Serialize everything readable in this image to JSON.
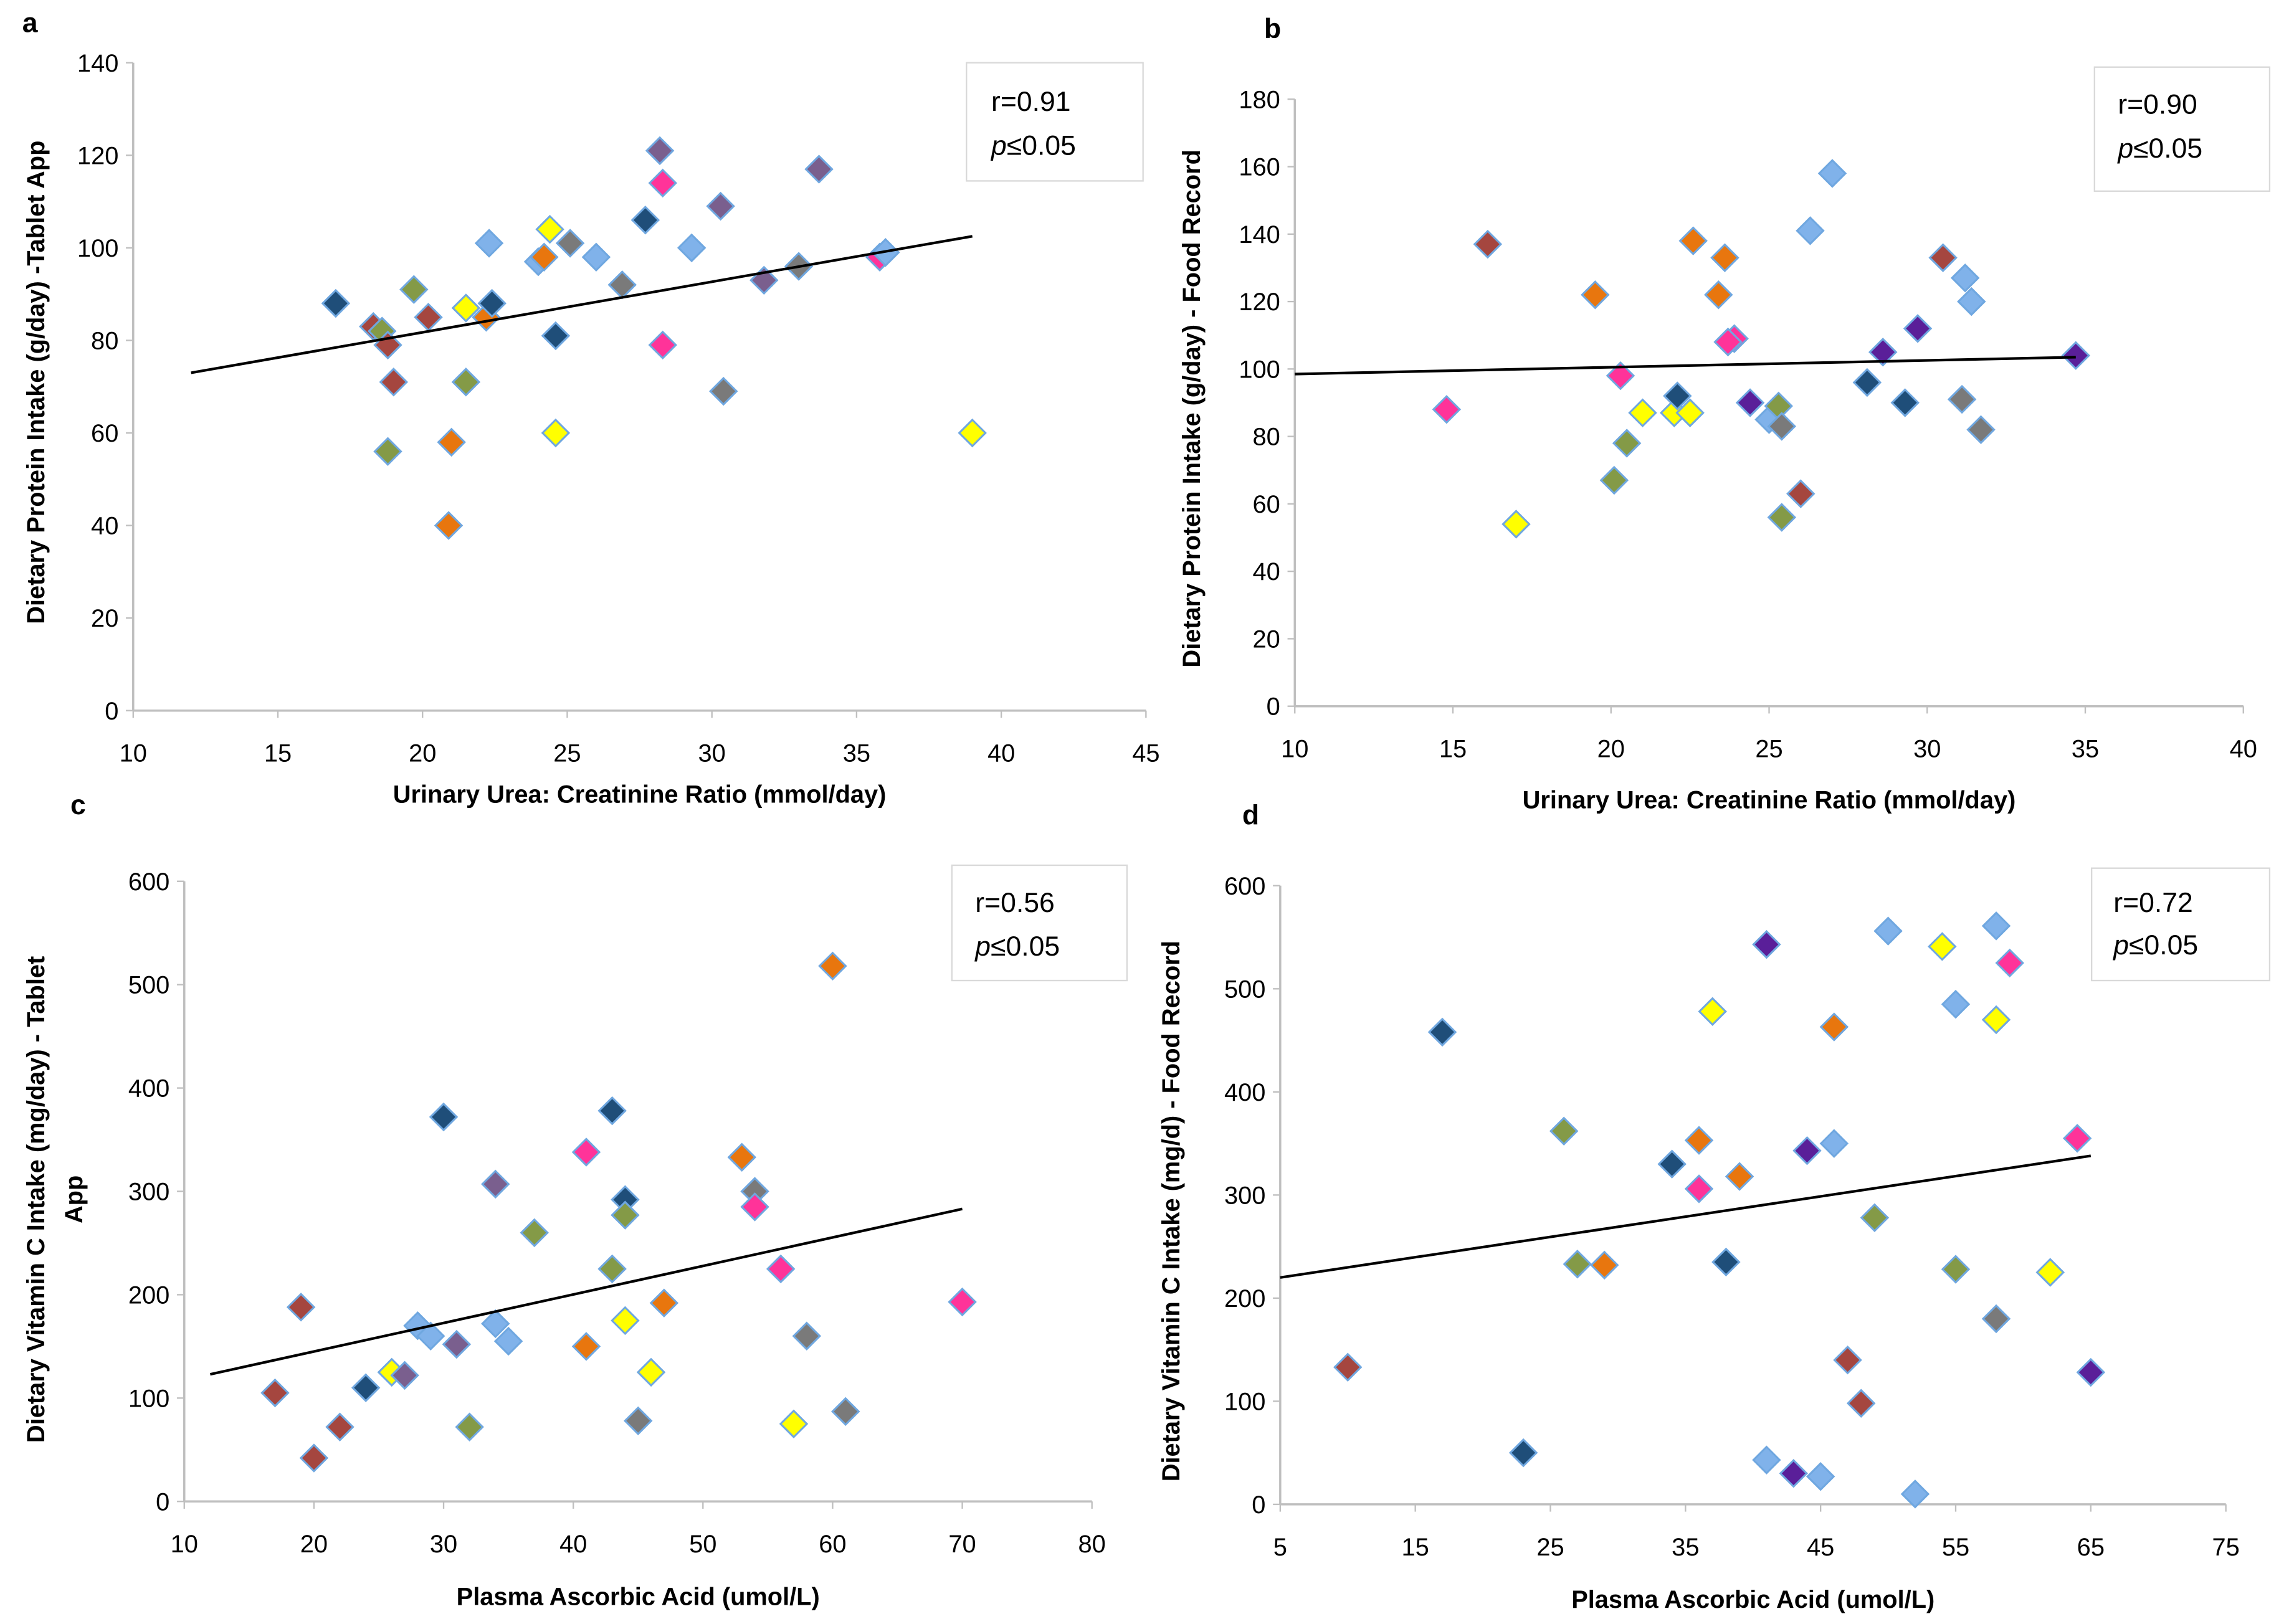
{
  "colors": {
    "navy": "#1f4e79",
    "brown": "#a5463f",
    "green": "#849a47",
    "lightblue": "#80b2ea",
    "yellow": "#ffff00",
    "orange": "#e8760e",
    "gray": "#7a7a7a",
    "purple": "#7a5f8e",
    "pink": "#ff3399",
    "violet": "#5a1f99",
    "marker_edge": "#6fa7e0",
    "trendline": "#000000",
    "axis": "#bfbfbf"
  },
  "chart_data": [
    {
      "type": "scatter",
      "panel": "a",
      "xlabel": "Urinary Urea: Creatinine Ratio (mmol/day)",
      "ylabel": [
        "Dietary Protein Intake (g/day) -Tablet App"
      ],
      "xlim": [
        10,
        45
      ],
      "ylim": [
        0,
        140
      ],
      "xticks": [
        10,
        15,
        20,
        25,
        30,
        35,
        40,
        45
      ],
      "yticks": [
        0,
        20,
        40,
        60,
        80,
        100,
        120,
        140
      ],
      "stats": {
        "r": "r=0.91",
        "p_label": "p",
        "p_value": "≤0.05"
      },
      "trendline": [
        [
          12,
          73
        ],
        [
          39,
          102.5
        ]
      ],
      "points": [
        [
          17,
          88,
          "navy"
        ],
        [
          18.3,
          83,
          "brown"
        ],
        [
          18.6,
          82,
          "green"
        ],
        [
          18.8,
          79,
          "brown"
        ],
        [
          19,
          71,
          "brown"
        ],
        [
          18.8,
          56,
          "green"
        ],
        [
          19.7,
          91,
          "green"
        ],
        [
          20.2,
          85,
          "brown"
        ],
        [
          21,
          58,
          "orange"
        ],
        [
          20.9,
          40,
          "orange"
        ],
        [
          21.5,
          87,
          "yellow"
        ],
        [
          21.5,
          71,
          "green"
        ],
        [
          22.2,
          85,
          "orange"
        ],
        [
          22.4,
          88,
          "navy"
        ],
        [
          22.3,
          101,
          "lightblue"
        ],
        [
          24,
          97,
          "lightblue"
        ],
        [
          24.2,
          98,
          "orange"
        ],
        [
          24.4,
          104,
          "yellow"
        ],
        [
          24.6,
          81,
          "navy"
        ],
        [
          24.6,
          60,
          "yellow"
        ],
        [
          25.1,
          101,
          "gray"
        ],
        [
          26,
          98,
          "lightblue"
        ],
        [
          26.9,
          92,
          "gray"
        ],
        [
          27.7,
          106,
          "navy"
        ],
        [
          28.2,
          121,
          "purple"
        ],
        [
          28.3,
          114,
          "pink"
        ],
        [
          28.3,
          79,
          "pink"
        ],
        [
          29.3,
          100,
          "lightblue"
        ],
        [
          30.3,
          109,
          "purple"
        ],
        [
          30.4,
          69,
          "gray"
        ],
        [
          31.8,
          93,
          "purple"
        ],
        [
          33,
          96,
          "gray"
        ],
        [
          33.7,
          117,
          "purple"
        ],
        [
          35.8,
          98,
          "pink"
        ],
        [
          36,
          99,
          "lightblue"
        ],
        [
          39,
          60,
          "yellow"
        ]
      ]
    },
    {
      "type": "scatter",
      "panel": "b",
      "xlabel": "Urinary Urea: Creatinine Ratio (mmol/day)",
      "ylabel": [
        "Dietary Protein Intake (g/day) - Food Record"
      ],
      "xlim": [
        10,
        40
      ],
      "ylim": [
        0,
        180
      ],
      "xticks": [
        10,
        15,
        20,
        25,
        30,
        35,
        40
      ],
      "yticks": [
        0,
        20,
        40,
        60,
        80,
        100,
        120,
        140,
        160,
        180
      ],
      "stats": {
        "r": "r=0.90",
        "p_label": "p",
        "p_value": "≤0.05"
      },
      "trendline": [
        [
          10,
          98.5
        ],
        [
          34.7,
          103.5
        ]
      ],
      "points": [
        [
          14.8,
          88,
          "pink"
        ],
        [
          16.1,
          137,
          "brown"
        ],
        [
          17,
          54,
          "yellow"
        ],
        [
          19.5,
          122,
          "orange"
        ],
        [
          20.1,
          67,
          "green"
        ],
        [
          20.3,
          98,
          "pink"
        ],
        [
          20.5,
          78,
          "green"
        ],
        [
          21,
          87,
          "yellow"
        ],
        [
          22,
          87,
          "yellow"
        ],
        [
          22.1,
          92,
          "navy"
        ],
        [
          22.5,
          87,
          "yellow"
        ],
        [
          22.6,
          138,
          "orange"
        ],
        [
          23.4,
          122,
          "orange"
        ],
        [
          23.6,
          133,
          "orange"
        ],
        [
          23.9,
          109,
          "pink"
        ],
        [
          23.7,
          108,
          "pink"
        ],
        [
          24.4,
          90,
          "violet"
        ],
        [
          25,
          85,
          "lightblue"
        ],
        [
          25.3,
          89,
          "green"
        ],
        [
          25.4,
          83,
          "gray"
        ],
        [
          25.4,
          56,
          "green"
        ],
        [
          26,
          63,
          "brown"
        ],
        [
          26.3,
          141,
          "lightblue"
        ],
        [
          27,
          158,
          "lightblue"
        ],
        [
          28.1,
          96,
          "navy"
        ],
        [
          28.6,
          105,
          "violet"
        ],
        [
          29.3,
          90,
          "navy"
        ],
        [
          29.7,
          112,
          "violet"
        ],
        [
          30.5,
          133,
          "brown"
        ],
        [
          31.1,
          91,
          "gray"
        ],
        [
          31.2,
          127,
          "lightblue"
        ],
        [
          31.4,
          120,
          "lightblue"
        ],
        [
          31.7,
          82,
          "gray"
        ],
        [
          34.7,
          104,
          "violet"
        ]
      ]
    },
    {
      "type": "scatter",
      "panel": "c",
      "xlabel": "Plasma Ascorbic Acid (umol/L)",
      "ylabel": [
        "Dietary Vitamin C Intake (mg/day) - Tablet",
        "App"
      ],
      "xlim": [
        10,
        80
      ],
      "ylim": [
        0,
        600
      ],
      "xticks": [
        10,
        20,
        30,
        40,
        50,
        60,
        70,
        80
      ],
      "yticks": [
        0,
        100,
        200,
        300,
        400,
        500,
        600
      ],
      "stats": {
        "r": "r=0.56",
        "p_label": "p",
        "p_value": "≤0.05"
      },
      "trendline": [
        [
          12,
          123
        ],
        [
          70,
          283
        ]
      ],
      "points": [
        [
          17,
          105,
          "brown"
        ],
        [
          19,
          188,
          "brown"
        ],
        [
          20,
          42,
          "brown"
        ],
        [
          22,
          72,
          "brown"
        ],
        [
          24,
          110,
          "navy"
        ],
        [
          26,
          125,
          "yellow"
        ],
        [
          27,
          122,
          "purple"
        ],
        [
          28,
          170,
          "lightblue"
        ],
        [
          29,
          160,
          "lightblue"
        ],
        [
          30,
          372,
          "navy"
        ],
        [
          31,
          152,
          "purple"
        ],
        [
          32,
          72,
          "green"
        ],
        [
          34,
          307,
          "purple"
        ],
        [
          34,
          172,
          "lightblue"
        ],
        [
          35,
          155,
          "lightblue"
        ],
        [
          37,
          260,
          "green"
        ],
        [
          41,
          338,
          "pink"
        ],
        [
          41,
          150,
          "orange"
        ],
        [
          43,
          378,
          "navy"
        ],
        [
          43,
          225,
          "green"
        ],
        [
          44,
          292,
          "navy"
        ],
        [
          44,
          277,
          "green"
        ],
        [
          44,
          175,
          "yellow"
        ],
        [
          45,
          78,
          "gray"
        ],
        [
          46,
          125,
          "yellow"
        ],
        [
          47,
          192,
          "orange"
        ],
        [
          53,
          333,
          "orange"
        ],
        [
          54,
          300,
          "gray"
        ],
        [
          54,
          285,
          "pink"
        ],
        [
          56,
          225,
          "pink"
        ],
        [
          57,
          75,
          "yellow"
        ],
        [
          58,
          160,
          "gray"
        ],
        [
          60,
          518,
          "orange"
        ],
        [
          61,
          87,
          "gray"
        ],
        [
          70,
          193,
          "pink"
        ]
      ]
    },
    {
      "type": "scatter",
      "panel": "d",
      "xlabel": "Plasma Ascorbic Acid (umol/L)",
      "ylabel": [
        "Dietary Vitamin C Intake (mg/d) - Food Record"
      ],
      "xlim": [
        5,
        75
      ],
      "ylim": [
        0,
        600
      ],
      "xticks": [
        5,
        15,
        25,
        35,
        45,
        55,
        65,
        75
      ],
      "yticks": [
        0,
        100,
        200,
        300,
        400,
        500,
        600
      ],
      "stats": {
        "r": "r=0.72",
        "p_label": "p",
        "p_value": "≤0.05"
      },
      "trendline": [
        [
          5,
          220
        ],
        [
          65,
          338
        ]
      ],
      "points": [
        [
          10,
          133,
          "brown"
        ],
        [
          17,
          458,
          "navy"
        ],
        [
          23,
          50,
          "navy"
        ],
        [
          26,
          362,
          "green"
        ],
        [
          27,
          233,
          "green"
        ],
        [
          29,
          232,
          "orange"
        ],
        [
          34,
          330,
          "navy"
        ],
        [
          36,
          353,
          "orange"
        ],
        [
          36,
          306,
          "pink"
        ],
        [
          37,
          478,
          "yellow"
        ],
        [
          38,
          235,
          "navy"
        ],
        [
          39,
          318,
          "orange"
        ],
        [
          41,
          543,
          "violet"
        ],
        [
          41,
          43,
          "lightblue"
        ],
        [
          43,
          30,
          "violet"
        ],
        [
          44,
          343,
          "violet"
        ],
        [
          45,
          27,
          "lightblue"
        ],
        [
          46,
          463,
          "orange"
        ],
        [
          46,
          350,
          "lightblue"
        ],
        [
          47,
          140,
          "brown"
        ],
        [
          48,
          98,
          "brown"
        ],
        [
          49,
          278,
          "green"
        ],
        [
          50,
          556,
          "lightblue"
        ],
        [
          52,
          10,
          "lightblue"
        ],
        [
          54,
          541,
          "yellow"
        ],
        [
          55,
          485,
          "lightblue"
        ],
        [
          55,
          228,
          "green"
        ],
        [
          58,
          561,
          "lightblue"
        ],
        [
          58,
          470,
          "yellow"
        ],
        [
          58,
          180,
          "gray"
        ],
        [
          59,
          525,
          "pink"
        ],
        [
          62,
          225,
          "yellow"
        ],
        [
          64,
          355,
          "pink"
        ],
        [
          65,
          128,
          "violet"
        ]
      ]
    }
  ]
}
